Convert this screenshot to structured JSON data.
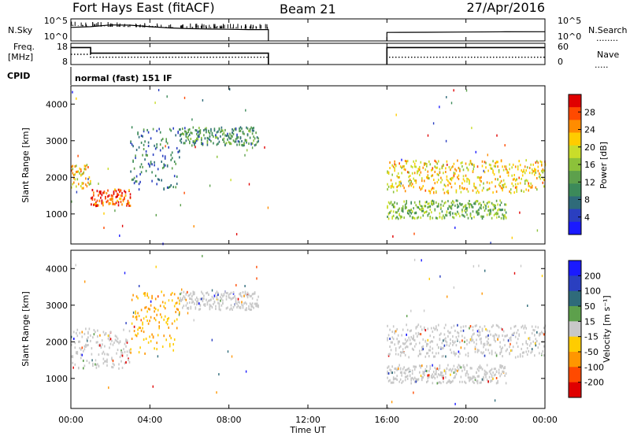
{
  "header": {
    "radar": "Fort Hays East (fitACF)",
    "beam": "Beam 21",
    "date": "27/Apr/2016"
  },
  "panels": {
    "nsky": {
      "left_label": "N.Sky",
      "right_label": "N.Search",
      "left_ticks": [
        "10^5",
        "10^0"
      ],
      "right_ticks": [
        "10^5",
        "10^0"
      ]
    },
    "freq": {
      "left_label_line1": "Freq.",
      "left_label_line2": "[MHz]",
      "right_label": "Nave",
      "left_ticks": [
        "18",
        "8"
      ],
      "right_ticks": [
        "60",
        "0"
      ]
    },
    "cpid": {
      "label": "CPID",
      "text": "normal (fast) 151 IF"
    },
    "power": {
      "ylabel": "Slant Range [km]",
      "cbar_label": "Power [dB]",
      "cbar_ticks": [
        "28",
        "24",
        "20",
        "16",
        "12",
        "8",
        "4"
      ]
    },
    "velocity": {
      "ylabel": "Slant Range [km]",
      "cbar_label": "Velocity [m s⁻¹]",
      "cbar_ticks": [
        "200",
        "100",
        "50",
        "15",
        "-15",
        "-50",
        "-100",
        "-200"
      ]
    }
  },
  "xaxis": {
    "label": "Time UT",
    "ticks": [
      "00:00",
      "04:00",
      "08:00",
      "12:00",
      "16:00",
      "20:00",
      "00:00"
    ]
  },
  "chart_data": [
    {
      "type": "line",
      "name": "N.Sky / N.Search",
      "x_unit": "hours UT",
      "gap_hours": [
        10,
        16
      ],
      "series": [
        {
          "name": "N.Sky",
          "x": [
            0,
            1,
            2,
            3,
            4,
            5,
            6,
            7,
            8,
            9,
            10,
            16,
            18,
            20,
            22,
            24
          ],
          "values": [
            2000,
            3000,
            8000,
            7000,
            3000,
            1500,
            1000,
            800,
            700,
            600,
            600,
            120,
            130,
            150,
            170,
            180
          ]
        }
      ],
      "ylim": [
        1,
        100000
      ],
      "yscale": "log"
    },
    {
      "type": "line",
      "name": "Freq / Nave",
      "x_unit": "hours UT",
      "gap_hours": [
        10,
        16
      ],
      "series": [
        {
          "name": "Freq",
          "x": [
            0,
            1,
            1,
            10,
            16,
            24
          ],
          "values": [
            17,
            17,
            14,
            14,
            17,
            17
          ]
        },
        {
          "name": "Nave",
          "x": [
            0,
            1,
            1,
            10,
            16,
            24
          ],
          "values": [
            30,
            30,
            20,
            20,
            20,
            20
          ]
        }
      ],
      "ylim": [
        8,
        18
      ],
      "y2lim": [
        0,
        60
      ]
    },
    {
      "type": "heatmap",
      "name": "Power",
      "x_unit": "hours UT",
      "ylabel": "Slant Range [km]",
      "ylim": [
        180,
        4500
      ],
      "xlim": [
        0,
        24
      ],
      "cbar_label": "Power [dB]",
      "cbar_range": [
        0,
        30
      ],
      "cbar_colors": [
        "#1a1aff",
        "#2a3fc0",
        "#2f6b7a",
        "#3c8a5a",
        "#5da04c",
        "#8cc23a",
        "#c9dd2a",
        "#ffcc00",
        "#ff8c00",
        "#ff4a00",
        "#e00000"
      ],
      "bands": [
        {
          "x_start": 0.0,
          "x_end": 1.0,
          "range_low": 1700,
          "range_high": 2400,
          "power_db": 20
        },
        {
          "x_start": 1.0,
          "x_end": 3.0,
          "range_low": 1250,
          "range_high": 1700,
          "power_db": 26
        },
        {
          "x_start": 3.0,
          "x_end": 5.5,
          "range_low": 1700,
          "range_high": 3400,
          "power_db": 8
        },
        {
          "x_start": 5.5,
          "x_end": 9.5,
          "range_low": 2900,
          "range_high": 3400,
          "power_db": 10
        },
        {
          "x_start": 16.0,
          "x_end": 24.0,
          "range_low": 1600,
          "range_high": 2500,
          "power_db": 20
        },
        {
          "x_start": 16.0,
          "x_end": 22.0,
          "range_low": 900,
          "range_high": 1400,
          "power_db": 14
        }
      ]
    },
    {
      "type": "heatmap",
      "name": "Velocity",
      "x_unit": "hours UT",
      "ylabel": "Slant Range [km]",
      "ylim": [
        180,
        4500
      ],
      "xlim": [
        0,
        24
      ],
      "cbar_label": "Velocity [m s⁻¹]",
      "cbar_range": [
        -250,
        250
      ],
      "cbar_colors": [
        "#e00000",
        "#ff4a00",
        "#ff9600",
        "#ffcc00",
        "#c8c8c8",
        "#5da04c",
        "#2f6b7a",
        "#2a3fc0",
        "#1a1aff"
      ],
      "bands": [
        {
          "x_start": 0.0,
          "x_end": 3.0,
          "range_low": 1300,
          "range_high": 2400,
          "velocity": 0
        },
        {
          "x_start": 3.0,
          "x_end": 5.5,
          "range_low": 1700,
          "range_high": 3400,
          "velocity": -60
        },
        {
          "x_start": 5.5,
          "x_end": 9.5,
          "range_low": 2900,
          "range_high": 3400,
          "velocity": -20
        },
        {
          "x_start": 16.0,
          "x_end": 24.0,
          "range_low": 1600,
          "range_high": 2500,
          "velocity": 0
        },
        {
          "x_start": 16.0,
          "x_end": 22.0,
          "range_low": 900,
          "range_high": 1400,
          "velocity": 0
        }
      ]
    }
  ]
}
